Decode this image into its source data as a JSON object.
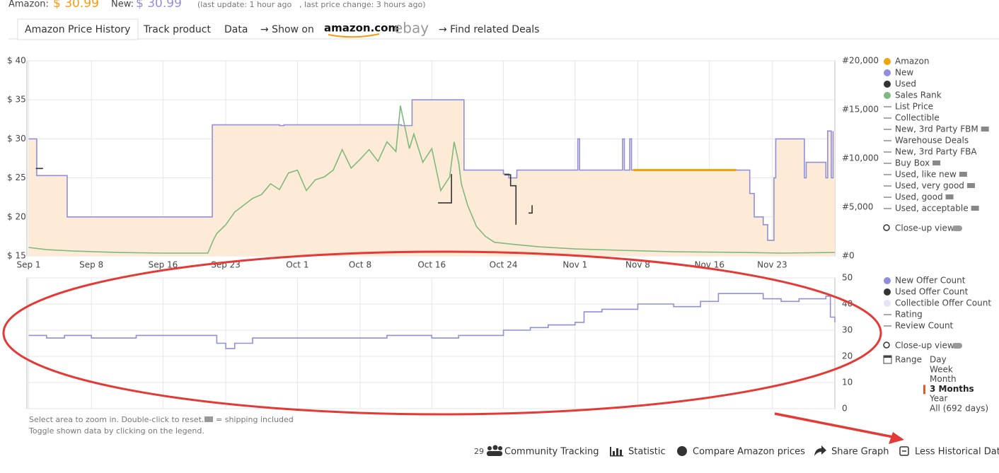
{
  "header": {
    "amazon_label": "Amazon:",
    "amazon_price": "$ 30.99",
    "new_label": "New:",
    "new_price": "$ 30.99",
    "update_note": "(last update: 1 hour ago",
    "change_note": ", last price change: 3 hours ago)"
  },
  "tabs": [
    "Amazon Price History",
    "Track product",
    "Data",
    "→ Show on",
    "amazon.com",
    "ebay",
    "→ Find related Deals"
  ],
  "chart_data": [
    {
      "type": "line",
      "xlim": [
        -0.2,
        90
      ],
      "xticks": [
        {
          "value": 0,
          "label": "Sep 1"
        },
        {
          "value": 7,
          "label": "Sep 8"
        },
        {
          "value": 15,
          "label": "Sep 16"
        },
        {
          "value": 22,
          "label": "Sep 23"
        },
        {
          "value": 30,
          "label": "Oct 1"
        },
        {
          "value": 37,
          "label": "Oct 8"
        },
        {
          "value": 45,
          "label": "Oct 16"
        },
        {
          "value": 53,
          "label": "Oct 24"
        },
        {
          "value": 61,
          "label": "Nov 1"
        },
        {
          "value": 68,
          "label": "Nov 8"
        },
        {
          "value": 76,
          "label": "Nov 16"
        },
        {
          "value": 83,
          "label": "Nov 23"
        }
      ],
      "ylim": [
        15,
        40
      ],
      "yticks": [
        {
          "value": 15,
          "label": "$ 15"
        },
        {
          "value": 20,
          "label": "$ 20"
        },
        {
          "value": 25,
          "label": "$ 25"
        },
        {
          "value": 30,
          "label": "$ 30"
        },
        {
          "value": 35,
          "label": "$ 35"
        },
        {
          "value": 40,
          "label": "$ 40"
        }
      ],
      "y2lim": [
        0,
        20000
      ],
      "y2ticks": [
        {
          "value": 0,
          "label": "#0"
        },
        {
          "value": 5000,
          "label": "#5,000"
        },
        {
          "value": 10000,
          "label": "#10,000"
        },
        {
          "value": 15000,
          "label": "#15,000"
        },
        {
          "value": 20000,
          "label": "#20,000"
        }
      ],
      "grid": true,
      "series": [
        {
          "name": "Amazon",
          "color": "#f0a30a",
          "step": true,
          "x": [
            67.5,
            79
          ],
          "values": [
            26,
            26
          ]
        },
        {
          "name": "New",
          "color": "#8f8fdc",
          "step": true,
          "fill": "#fdebd8",
          "x": [
            0,
            0.9,
            4.3,
            20.5,
            28,
            28.5,
            41.6,
            42.8,
            48.6,
            53,
            53.6,
            54.5,
            61.3,
            61.5,
            66.3,
            66.5,
            67.1,
            67.3,
            79,
            80.5,
            81,
            82,
            82.5,
            83.2,
            83.4,
            86.6,
            86.8,
            89,
            89.2,
            89.6,
            89.8
          ],
          "values": [
            30,
            25.3,
            20,
            31.8,
            31.7,
            31.8,
            31.7,
            35,
            26,
            25.5,
            25,
            26,
            30,
            26,
            30,
            26,
            30,
            26,
            26,
            23,
            20,
            19,
            17,
            25,
            30,
            25,
            27,
            25,
            31,
            25,
            31
          ]
        },
        {
          "name": "Used",
          "color": "#333333",
          "step": true,
          "x": [
            0.8,
            1.6,
            1.7,
            45.7,
            46.6,
            47.2,
            47.3,
            53.1,
            53.8,
            54.4,
            55.6,
            55.8,
            56.2
          ],
          "values": [
            26.2,
            26.2,
            null,
            21.8,
            21.8,
            25.5,
            null,
            25.4,
            24,
            19,
            null,
            20.5,
            21.5
          ]
        },
        {
          "name": "Sales Rank",
          "color": "#7fb97f",
          "axis": "y2",
          "x": [
            0,
            2,
            5,
            10,
            15,
            20,
            20.6,
            21,
            22,
            23,
            24,
            25,
            26,
            27,
            28,
            29,
            30,
            31,
            32,
            33,
            34,
            35,
            36,
            37,
            38,
            39,
            40,
            41,
            41.5,
            42,
            42.5,
            43,
            44,
            45,
            46,
            47,
            47.5,
            48,
            48.3,
            49,
            50,
            51,
            52,
            54,
            57,
            61,
            66,
            72,
            80,
            84,
            90
          ],
          "values": [
            870,
            650,
            500,
            360,
            290,
            290,
            1600,
            2300,
            3200,
            4500,
            5200,
            5900,
            6300,
            7400,
            6800,
            8500,
            8800,
            6700,
            7800,
            8100,
            8800,
            10900,
            9000,
            9900,
            10900,
            9700,
            11700,
            10700,
            15400,
            13200,
            11000,
            12500,
            9600,
            11000,
            6700,
            8100,
            11700,
            9600,
            7400,
            5200,
            3000,
            2000,
            1400,
            1200,
            940,
            720,
            580,
            430,
            360,
            290,
            360
          ]
        }
      ],
      "legend_extra": [
        {
          "name": "List Price",
          "marker": "line"
        },
        {
          "name": "Collectible",
          "marker": "line"
        },
        {
          "name": "New, 3rd Party FBM",
          "marker": "line"
        },
        {
          "name": "Warehouse Deals",
          "marker": "line"
        },
        {
          "name": "New, 3rd Party FBA",
          "marker": "line"
        },
        {
          "name": "Buy Box",
          "marker": "line"
        },
        {
          "name": "Used, like new",
          "marker": "line"
        },
        {
          "name": "Used, very good",
          "marker": "line"
        },
        {
          "name": "Used, good",
          "marker": "line"
        },
        {
          "name": "Used, acceptable",
          "marker": "line"
        }
      ],
      "closeup": "Close-up view"
    },
    {
      "type": "line",
      "xlim": [
        -0.2,
        90
      ],
      "ylim": [
        0,
        50
      ],
      "yticks": [
        0,
        10,
        20,
        30,
        40,
        50
      ],
      "grid": true,
      "series": [
        {
          "name": "New Offer Count",
          "color": "#8f8fdc",
          "step": true,
          "x": [
            0,
            2,
            4,
            7,
            12,
            20.5,
            21,
            22,
            23,
            25,
            30,
            35,
            40,
            45,
            48,
            53,
            56,
            58,
            61,
            62,
            64,
            68,
            72,
            75,
            77,
            79,
            82,
            84,
            86,
            89,
            89.5,
            90
          ],
          "values": [
            28,
            27,
            28,
            27,
            28,
            28,
            25,
            23,
            25,
            27,
            27,
            27,
            28,
            27,
            28,
            30,
            31,
            32,
            33,
            37,
            38,
            40,
            39,
            41,
            44,
            44,
            42,
            41,
            42,
            43,
            35,
            33
          ]
        }
      ],
      "legend_extra": [
        {
          "name": "Used Offer Count",
          "marker": "dot",
          "color": "#333333"
        },
        {
          "name": "Collectible Offer Count",
          "marker": "dot",
          "color": "#e4e4f7"
        },
        {
          "name": "Rating",
          "marker": "line"
        },
        {
          "name": "Review Count",
          "marker": "line"
        }
      ],
      "closeup": "Close-up view"
    }
  ],
  "range": {
    "label": "Range",
    "options": [
      "Day",
      "Week",
      "Month",
      "3 Months",
      "Year",
      "All (692 days)"
    ],
    "selected": 3
  },
  "notes": {
    "zoom": "Select area to zoom in. Double-click to reset.",
    "shipping": "= shipping included",
    "toggle": "Toggle shown data by clicking on the legend."
  },
  "toolbar": {
    "count": "29",
    "items": [
      "Community Tracking",
      "Statistic",
      "Compare Amazon prices",
      "Share Graph",
      "Less Historical Data"
    ]
  }
}
